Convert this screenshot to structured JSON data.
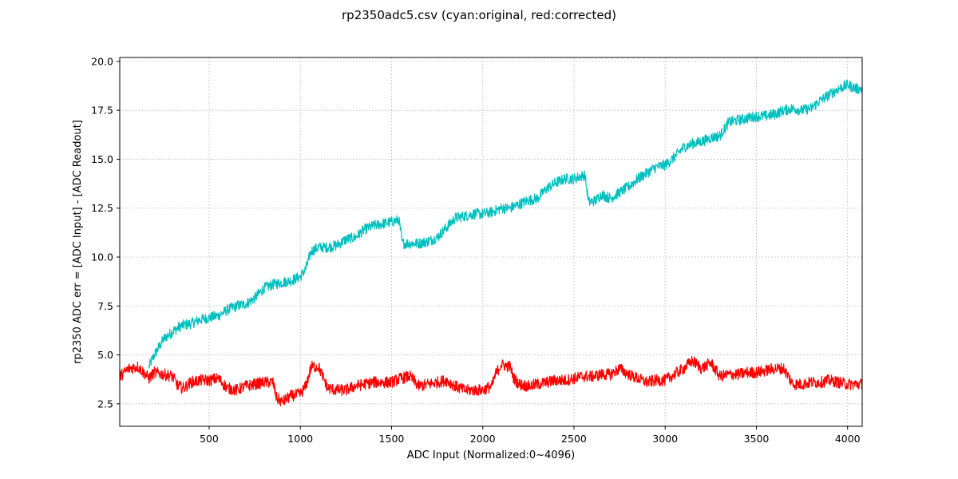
{
  "chart_data": {
    "type": "line",
    "title": "rp2350adc5.csv (cyan:original, red:corrected)",
    "xlabel": "ADC Input (Normalized:0~4096)",
    "ylabel": "rp2350 ADC err = [ADC Input] - [ADC Readout]",
    "xlim": [
      10,
      4080
    ],
    "ylim": [
      1.35,
      20.2
    ],
    "x_ticks": [
      500,
      1000,
      1500,
      2000,
      2500,
      3000,
      3500,
      4000
    ],
    "y_ticks": [
      2.5,
      5.0,
      7.5,
      10.0,
      12.5,
      15.0,
      17.5,
      20.0
    ],
    "x_tick_labels": [
      "500",
      "1000",
      "1500",
      "2000",
      "2500",
      "3000",
      "3500",
      "4000"
    ],
    "y_tick_labels": [
      "2.5",
      "5.0",
      "7.5",
      "10.0",
      "12.5",
      "15.0",
      "17.5",
      "20.0"
    ],
    "grid": true,
    "series": [
      {
        "color": "#00bfbf",
        "noise_band": 0.55,
        "x": [
          170,
          200,
          250,
          300,
          350,
          400,
          450,
          500,
          550,
          600,
          650,
          700,
          750,
          800,
          850,
          900,
          950,
          1000,
          1030,
          1060,
          1100,
          1150,
          1200,
          1250,
          1300,
          1350,
          1400,
          1450,
          1500,
          1540,
          1560,
          1600,
          1650,
          1700,
          1750,
          1800,
          1850,
          1900,
          1950,
          2000,
          2050,
          2100,
          2150,
          2200,
          2250,
          2300,
          2350,
          2400,
          2450,
          2500,
          2560,
          2580,
          2620,
          2650,
          2700,
          2750,
          2800,
          2850,
          2900,
          2950,
          3000,
          3050,
          3100,
          3150,
          3200,
          3250,
          3300,
          3350,
          3400,
          3450,
          3500,
          3550,
          3600,
          3650,
          3700,
          3750,
          3800,
          3850,
          3900,
          3950,
          4000,
          4050,
          4080
        ],
        "y": [
          4.4,
          5.0,
          5.8,
          6.2,
          6.5,
          6.6,
          6.8,
          6.9,
          7.0,
          7.3,
          7.5,
          7.6,
          7.9,
          8.4,
          8.6,
          8.7,
          8.8,
          9.0,
          9.4,
          10.3,
          10.5,
          10.5,
          10.6,
          10.9,
          11.0,
          11.4,
          11.6,
          11.7,
          11.8,
          11.9,
          10.7,
          10.7,
          10.7,
          10.8,
          11.0,
          11.5,
          12.0,
          12.1,
          12.2,
          12.2,
          12.3,
          12.5,
          12.5,
          12.7,
          12.9,
          13.0,
          13.5,
          13.8,
          14.0,
          14.0,
          14.2,
          12.8,
          12.9,
          13.2,
          13.0,
          13.3,
          13.6,
          14.0,
          14.3,
          14.6,
          14.7,
          15.1,
          15.6,
          15.8,
          15.9,
          16.1,
          16.2,
          16.9,
          17.0,
          17.1,
          17.2,
          17.2,
          17.3,
          17.5,
          17.6,
          17.5,
          17.6,
          18.0,
          18.3,
          18.6,
          18.8,
          18.6,
          18.6
        ]
      },
      {
        "color": "#ff0000",
        "noise_band": 0.6,
        "x": [
          10,
          60,
          110,
          170,
          200,
          250,
          300,
          330,
          360,
          400,
          450,
          500,
          550,
          600,
          650,
          700,
          750,
          800,
          850,
          870,
          900,
          950,
          1000,
          1030,
          1060,
          1100,
          1150,
          1200,
          1250,
          1300,
          1350,
          1400,
          1450,
          1500,
          1550,
          1600,
          1650,
          1700,
          1750,
          1800,
          1850,
          1900,
          1950,
          2000,
          2050,
          2070,
          2100,
          2150,
          2170,
          2200,
          2250,
          2300,
          2350,
          2400,
          2450,
          2500,
          2550,
          2600,
          2650,
          2700,
          2750,
          2800,
          2850,
          2900,
          2950,
          3000,
          3050,
          3100,
          3150,
          3200,
          3250,
          3300,
          3350,
          3400,
          3450,
          3500,
          3550,
          3600,
          3650,
          3700,
          3750,
          3800,
          3850,
          3900,
          3950,
          4000,
          4050,
          4080
        ],
        "y": [
          3.9,
          4.3,
          4.4,
          3.8,
          4.1,
          4.0,
          3.9,
          3.4,
          3.3,
          3.6,
          3.7,
          3.7,
          3.8,
          3.3,
          3.2,
          3.4,
          3.5,
          3.6,
          3.6,
          2.8,
          2.6,
          2.9,
          3.0,
          3.4,
          4.4,
          4.4,
          3.3,
          3.2,
          3.2,
          3.4,
          3.5,
          3.6,
          3.6,
          3.6,
          3.8,
          3.9,
          3.4,
          3.5,
          3.6,
          3.7,
          3.4,
          3.2,
          3.2,
          3.2,
          3.4,
          4.0,
          4.5,
          4.4,
          3.8,
          3.5,
          3.4,
          3.5,
          3.6,
          3.7,
          3.7,
          3.8,
          3.9,
          3.9,
          4.0,
          4.0,
          4.3,
          4.0,
          3.8,
          3.6,
          3.7,
          3.7,
          4.0,
          4.3,
          4.7,
          4.3,
          4.6,
          3.9,
          4.0,
          4.0,
          4.1,
          4.1,
          4.2,
          4.3,
          4.3,
          3.5,
          3.5,
          3.6,
          3.6,
          3.7,
          3.6,
          3.5,
          3.5,
          3.5
        ]
      }
    ]
  }
}
